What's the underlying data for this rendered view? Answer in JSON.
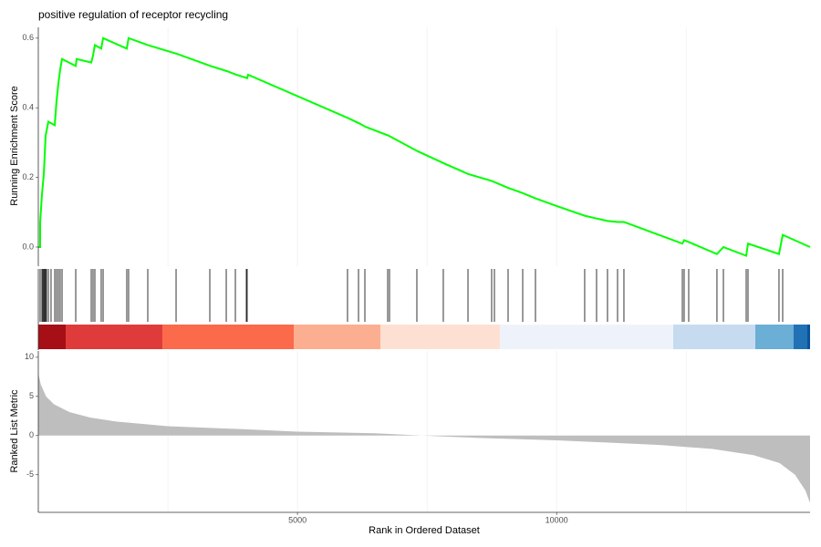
{
  "chart_data": [
    {
      "type": "line",
      "title": "positive regulation of receptor recycling",
      "ylabel": "Running Enrichment Score",
      "color": "#00ff00",
      "xlim": [
        0,
        14890
      ],
      "ylim": [
        -0.055,
        0.631
      ],
      "yticks": [
        {
          "value": 0,
          "label": "0.0"
        },
        {
          "value": 0.2,
          "label": "0.2"
        },
        {
          "value": 0.4,
          "label": "0.4"
        },
        {
          "value": 0.6,
          "label": "0.6"
        }
      ],
      "xgrid": [
        2500,
        5000,
        7500,
        10000,
        12500
      ],
      "x": [
        0,
        35,
        35,
        70,
        106,
        141,
        194,
        317,
        352,
        387,
        422,
        458,
        722,
        739,
        1021,
        1056,
        1091,
        1214,
        1250,
        1707,
        1742,
        2112,
        2675,
        3326,
        3643,
        3819,
        4030,
        4048,
        5984,
        6195,
        6318,
        6758,
        7322,
        7832,
        8290,
        8747,
        9064,
        9346,
        9592,
        9962,
        10543,
        10772,
        10983,
        11177,
        11300,
        12426,
        12461,
        13094,
        13218,
        13658,
        13693,
        14291,
        14362,
        14890
      ],
      "values": [
        0,
        0,
        0.07,
        0.15,
        0.21,
        0.32,
        0.36,
        0.35,
        0.42,
        0.47,
        0.51,
        0.54,
        0.52,
        0.54,
        0.53,
        0.55,
        0.58,
        0.57,
        0.6,
        0.57,
        0.6,
        0.58,
        0.555,
        0.52,
        0.505,
        0.495,
        0.485,
        0.495,
        0.37,
        0.355,
        0.345,
        0.32,
        0.275,
        0.24,
        0.21,
        0.19,
        0.17,
        0.155,
        0.14,
        0.12,
        0.09,
        0.082,
        0.075,
        0.072,
        0.072,
        0.01,
        0.02,
        -0.02,
        0,
        -0.025,
        0.01,
        -0.02,
        0.035,
        0
      ]
    },
    {
      "type": "rug",
      "xlim": [
        0,
        14890
      ],
      "color": "#000000",
      "hits": [
        35,
        70,
        88,
        106,
        123,
        141,
        158,
        194,
        246,
        317,
        352,
        387,
        422,
        458,
        722,
        1021,
        1056,
        1091,
        1214,
        1250,
        1707,
        1742,
        2112,
        2658,
        3309,
        3626,
        3802,
        4013,
        4030,
        5966,
        6178,
        6301,
        6741,
        6776,
        7304,
        7814,
        8290,
        8747,
        8800,
        9064,
        9346,
        9592,
        10542,
        10771,
        10982,
        11176,
        11299,
        12426,
        12461,
        12549,
        13094,
        13218,
        13658,
        13693,
        14291,
        14362
      ],
      "color_band": [
        {
          "start": 0,
          "end": 528,
          "color": "#a50f15"
        },
        {
          "start": 528,
          "end": 2394,
          "color": "#e03b3b"
        },
        {
          "start": 2394,
          "end": 4928,
          "color": "#fb6a4a"
        },
        {
          "start": 4928,
          "end": 6600,
          "color": "#fcae91"
        },
        {
          "start": 6600,
          "end": 8906,
          "color": "#fee0d2"
        },
        {
          "start": 8906,
          "end": 12250,
          "color": "#eef3fb"
        },
        {
          "start": 12250,
          "end": 13834,
          "color": "#c6dbef"
        },
        {
          "start": 13834,
          "end": 14573,
          "color": "#6baed6"
        },
        {
          "start": 14573,
          "end": 14837,
          "color": "#2171b5"
        },
        {
          "start": 14837,
          "end": 14890,
          "color": "#08519c"
        }
      ]
    },
    {
      "type": "area",
      "ylabel": "Ranked List Metric",
      "xlabel": "Rank in Ordered Dataset",
      "color": "#bebebe",
      "xlim": [
        0,
        14890
      ],
      "ylim": [
        -9.8,
        10.8
      ],
      "yticks": [
        -5,
        0,
        5,
        10
      ],
      "xticks": [
        5000,
        10000
      ],
      "xgrid": [
        2500,
        5000,
        7500,
        10000,
        12500
      ],
      "x": [
        0,
        50,
        150,
        300,
        600,
        1000,
        1500,
        2500,
        4000,
        5000,
        6500,
        7400,
        8500,
        10000,
        11000,
        12000,
        13000,
        13800,
        14300,
        14600,
        14800,
        14890
      ],
      "values": [
        7.9,
        6.5,
        5,
        4,
        3,
        2.3,
        1.8,
        1.2,
        0.8,
        0.5,
        0.3,
        0,
        -0.3,
        -0.6,
        -0.9,
        -1.2,
        -1.7,
        -2.5,
        -3.5,
        -5,
        -7,
        -8.6
      ]
    }
  ]
}
